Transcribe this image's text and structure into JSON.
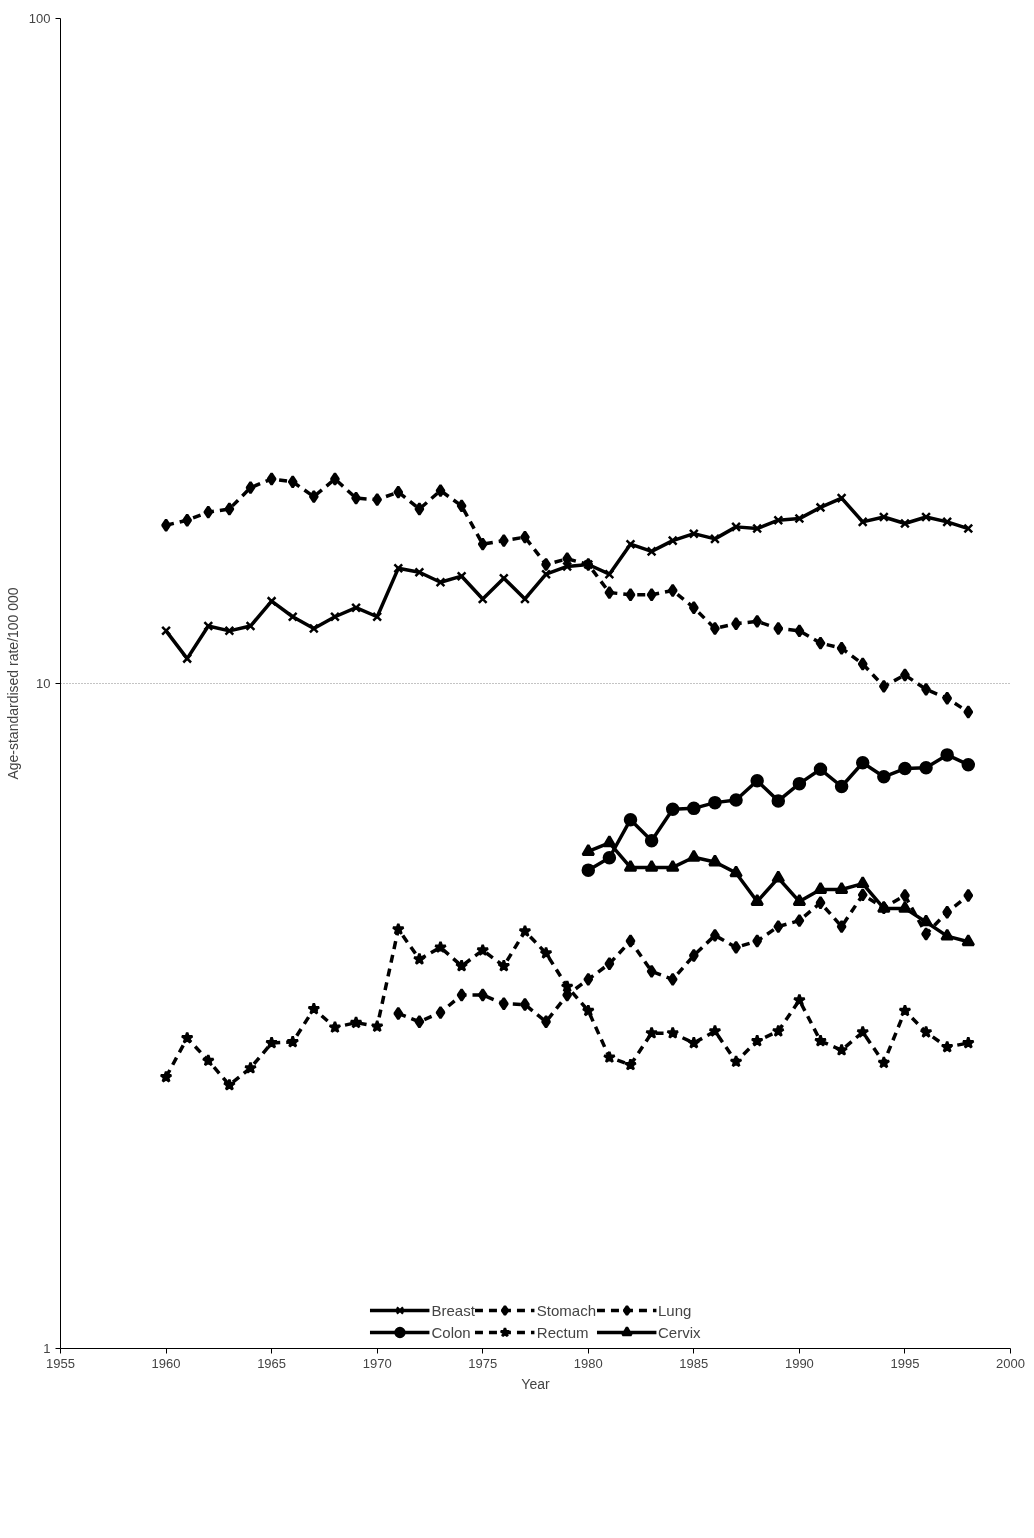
{
  "chart_data": {
    "type": "line",
    "xlabel": "Year",
    "ylabel": "Age-standardised rate/100 000",
    "log": "y",
    "xlim": [
      1955,
      2000
    ],
    "xticks": [
      1955,
      1960,
      1965,
      1970,
      1975,
      1980,
      1985,
      1990,
      1995,
      2000
    ],
    "ylim": [
      1,
      100
    ],
    "yticks": [
      1,
      10,
      100
    ],
    "grid": "y",
    "legend": "bottom",
    "series": [
      {
        "name": "Breast",
        "color": "#000000",
        "marker": "cross",
        "line_style": "solid",
        "x": [
          1960,
          1961,
          1962,
          1963,
          1964,
          1965,
          1966,
          1967,
          1968,
          1969,
          1970,
          1971,
          1972,
          1973,
          1974,
          1975,
          1976,
          1977,
          1978,
          1979,
          1980,
          1981,
          1982,
          1983,
          1984,
          1985,
          1986,
          1987,
          1988,
          1989,
          1990,
          1991,
          1992,
          1993,
          1994,
          1995,
          1996,
          1997,
          1998
        ],
        "values": [
          12.0,
          10.9,
          12.2,
          12.0,
          12.2,
          13.3,
          12.6,
          12.1,
          12.6,
          13.0,
          12.6,
          14.9,
          14.7,
          14.2,
          14.5,
          13.4,
          14.4,
          13.4,
          14.6,
          15.0,
          15.1,
          14.6,
          16.2,
          15.8,
          16.4,
          16.8,
          16.5,
          17.2,
          17.1,
          17.6,
          17.7,
          18.4,
          19.0,
          17.5,
          17.8,
          17.4,
          17.8,
          17.5,
          17.1
        ]
      },
      {
        "name": "Stomach",
        "color": "#000000",
        "marker": "diamond",
        "line_style": "dashed",
        "x": [
          1960,
          1961,
          1962,
          1963,
          1964,
          1965,
          1966,
          1967,
          1968,
          1969,
          1970,
          1971,
          1972,
          1973,
          1974,
          1975,
          1976,
          1977,
          1978,
          1979,
          1980,
          1981,
          1982,
          1983,
          1984,
          1985,
          1986,
          1987,
          1988,
          1989,
          1990,
          1991,
          1992,
          1993,
          1994,
          1995,
          1996,
          1997,
          1998
        ],
        "values": [
          17.3,
          17.6,
          18.1,
          18.3,
          19.7,
          20.3,
          20.1,
          19.1,
          20.3,
          19.0,
          18.9,
          19.4,
          18.3,
          19.5,
          18.5,
          16.2,
          16.4,
          16.6,
          15.1,
          15.4,
          15.1,
          13.7,
          13.6,
          13.6,
          13.8,
          13.0,
          12.1,
          12.3,
          12.4,
          12.1,
          12.0,
          11.5,
          11.3,
          10.7,
          9.9,
          10.3,
          9.8,
          9.5,
          9.06
        ]
      },
      {
        "name": "Lung",
        "color": "#000000",
        "marker": "diamond",
        "line_style": "dashed",
        "x": [
          1971,
          1972,
          1973,
          1974,
          1975,
          1976,
          1977,
          1978,
          1979,
          1980,
          1981,
          1982,
          1983,
          1984,
          1985,
          1986,
          1987,
          1988,
          1989,
          1990,
          1991,
          1992,
          1993,
          1994,
          1995,
          1996,
          1997,
          1998
        ],
        "values": [
          3.19,
          3.1,
          3.2,
          3.4,
          3.4,
          3.3,
          3.29,
          3.1,
          3.4,
          3.59,
          3.79,
          4.1,
          3.69,
          3.59,
          3.9,
          4.18,
          4.01,
          4.1,
          4.31,
          4.4,
          4.68,
          4.31,
          4.81,
          4.6,
          4.8,
          4.2,
          4.53,
          4.8
        ]
      },
      {
        "name": "Colon",
        "color": "#000000",
        "marker": "circle",
        "line_style": "solid",
        "x": [
          1980,
          1981,
          1982,
          1983,
          1984,
          1985,
          1986,
          1987,
          1988,
          1989,
          1990,
          1991,
          1992,
          1993,
          1994,
          1995,
          1996,
          1997,
          1998
        ],
        "values": [
          5.24,
          5.47,
          6.24,
          5.8,
          6.47,
          6.49,
          6.62,
          6.68,
          7.14,
          6.66,
          7.07,
          7.43,
          7.0,
          7.6,
          7.24,
          7.45,
          7.47,
          7.81,
          7.55
        ]
      },
      {
        "name": "Rectum",
        "color": "#000000",
        "marker": "star",
        "line_style": "dashed",
        "x": [
          1960,
          1961,
          1962,
          1963,
          1964,
          1965,
          1966,
          1967,
          1968,
          1969,
          1970,
          1971,
          1972,
          1973,
          1974,
          1975,
          1976,
          1977,
          1978,
          1979,
          1980,
          1981,
          1982,
          1983,
          1984,
          1985,
          1986,
          1987,
          1988,
          1989,
          1990,
          1991,
          1992,
          1993,
          1994,
          1995,
          1996,
          1997,
          1998
        ],
        "values": [
          2.56,
          2.93,
          2.71,
          2.49,
          2.64,
          2.88,
          2.89,
          3.24,
          3.04,
          3.09,
          3.05,
          4.27,
          3.85,
          4.01,
          3.76,
          3.97,
          3.76,
          4.24,
          3.93,
          3.5,
          3.22,
          2.74,
          2.67,
          2.98,
          2.98,
          2.88,
          3.0,
          2.7,
          2.9,
          3.0,
          3.34,
          2.9,
          2.81,
          2.99,
          2.69,
          3.22,
          2.99,
          2.84,
          2.88
        ]
      },
      {
        "name": "Cervix",
        "color": "#000000",
        "marker": "triangle",
        "line_style": "solid",
        "x": [
          1980,
          1981,
          1982,
          1983,
          1984,
          1985,
          1986,
          1987,
          1988,
          1989,
          1990,
          1991,
          1992,
          1993,
          1994,
          1995,
          1996,
          1997,
          1998
        ],
        "values": [
          5.59,
          5.76,
          5.29,
          5.29,
          5.29,
          5.48,
          5.39,
          5.19,
          4.7,
          5.1,
          4.7,
          4.9,
          4.9,
          5.0,
          4.59,
          4.59,
          4.38,
          4.17,
          4.09
        ]
      }
    ]
  }
}
